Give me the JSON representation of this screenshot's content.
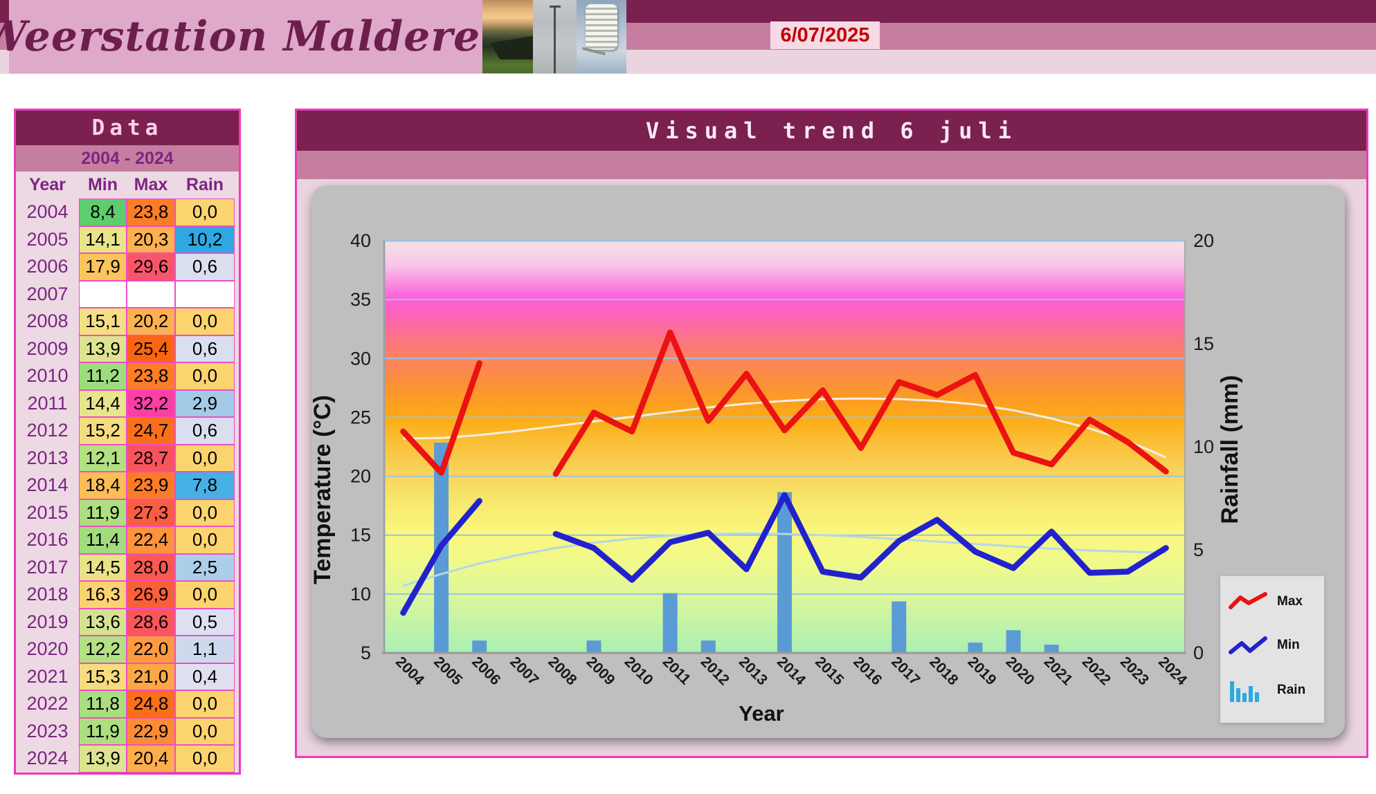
{
  "header": {
    "title": "Weerstation Malderen",
    "date": "6/07/2025",
    "photos": [
      "sunset-field-photo",
      "anemometer-mast-photo",
      "stevenson-screen-photo"
    ]
  },
  "table": {
    "title": "Data",
    "range": "2004 - 2024",
    "columns": [
      "Year",
      "Min",
      "Max",
      "Rain"
    ],
    "rows": [
      {
        "year": "2004",
        "min": "8,4",
        "min_bg": "#5dcd6e",
        "max": "23,8",
        "max_bg": "#fb7d27",
        "rain": "0,0",
        "rain_bg": "#fbd46f"
      },
      {
        "year": "2005",
        "min": "14,1",
        "min_bg": "#e9e489",
        "max": "20,3",
        "max_bg": "#fcb04f",
        "rain": "10,2",
        "rain_bg": "#2da8e2"
      },
      {
        "year": "2006",
        "min": "17,9",
        "min_bg": "#fcc45c",
        "max": "29,6",
        "max_bg": "#f9556a",
        "rain": "0,6",
        "rain_bg": "#dbdeef"
      },
      {
        "year": "2007",
        "min": "",
        "min_bg": "#ffffff",
        "max": "",
        "max_bg": "#ffffff",
        "rain": "",
        "rain_bg": "#ffffff"
      },
      {
        "year": "2008",
        "min": "15,1",
        "min_bg": "#f5de83",
        "max": "20,2",
        "max_bg": "#fcb150",
        "rain": "0,0",
        "rain_bg": "#fbd46f"
      },
      {
        "year": "2009",
        "min": "13,9",
        "min_bg": "#dde390",
        "max": "25,4",
        "max_bg": "#fa6610",
        "rain": "0,6",
        "rain_bg": "#dbdeef"
      },
      {
        "year": "2010",
        "min": "11,2",
        "min_bg": "#9edc7d",
        "max": "23,8",
        "max_bg": "#fb7d27",
        "rain": "0,0",
        "rain_bg": "#fbd46f"
      },
      {
        "year": "2011",
        "min": "14,4",
        "min_bg": "#e7e48b",
        "max": "32,2",
        "max_bg": "#fb3fa5",
        "rain": "2,9",
        "rain_bg": "#a3cbe8"
      },
      {
        "year": "2012",
        "min": "15,2",
        "min_bg": "#f5dc81",
        "max": "24,7",
        "max_bg": "#fb6f1b",
        "rain": "0,6",
        "rain_bg": "#dbdeef"
      },
      {
        "year": "2013",
        "min": "12,1",
        "min_bg": "#b3e083",
        "max": "28,7",
        "max_bg": "#f9545e",
        "rain": "0,0",
        "rain_bg": "#fbd46f"
      },
      {
        "year": "2014",
        "min": "18,4",
        "min_bg": "#fcbd55",
        "max": "23,9",
        "max_bg": "#fb7b26",
        "rain": "7,8",
        "rain_bg": "#47b0e5"
      },
      {
        "year": "2015",
        "min": "11,9",
        "min_bg": "#aede80",
        "max": "27,3",
        "max_bg": "#fa5d43",
        "rain": "0,0",
        "rain_bg": "#fbd46f"
      },
      {
        "year": "2016",
        "min": "11,4",
        "min_bg": "#a2dc7e",
        "max": "22,4",
        "max_bg": "#fc943d",
        "rain": "0,0",
        "rain_bg": "#fbd46f"
      },
      {
        "year": "2017",
        "min": "14,5",
        "min_bg": "#e9e287",
        "max": "28,0",
        "max_bg": "#f95951",
        "rain": "2,5",
        "rain_bg": "#accfe9"
      },
      {
        "year": "2018",
        "min": "16,3",
        "min_bg": "#fbd271",
        "max": "26,9",
        "max_bg": "#fa6038",
        "rain": "0,0",
        "rain_bg": "#fbd46f"
      },
      {
        "year": "2019",
        "min": "13,6",
        "min_bg": "#d6e292",
        "max": "28,6",
        "max_bg": "#f9565c",
        "rain": "0,5",
        "rain_bg": "#dedff0"
      },
      {
        "year": "2020",
        "min": "12,2",
        "min_bg": "#b5e083",
        "max": "22,0",
        "max_bg": "#fc9941",
        "rain": "1,1",
        "rain_bg": "#cfd9ee"
      },
      {
        "year": "2021",
        "min": "15,3",
        "min_bg": "#f6db7f",
        "max": "21,0",
        "max_bg": "#fca748",
        "rain": "0,4",
        "rain_bg": "#e0dff1"
      },
      {
        "year": "2022",
        "min": "11,8",
        "min_bg": "#abde81",
        "max": "24,8",
        "max_bg": "#fb6e1a",
        "rain": "0,0",
        "rain_bg": "#fbd46f"
      },
      {
        "year": "2023",
        "min": "11,9",
        "min_bg": "#aede80",
        "max": "22,9",
        "max_bg": "#fc8b37",
        "rain": "0,0",
        "rain_bg": "#fbd46f"
      },
      {
        "year": "2024",
        "min": "13,9",
        "min_bg": "#dde390",
        "max": "20,4",
        "max_bg": "#fcae4d",
        "rain": "0,0",
        "rain_bg": "#fbd46f"
      }
    ]
  },
  "chart": {
    "title": "Visual trend 6 juli",
    "x_label": "Year",
    "y_left_label": "Temperature (°C)",
    "y_right_label": "Rainfall (mm)",
    "y_left_ticks": [
      40,
      35,
      30,
      25,
      20,
      15,
      10,
      5
    ],
    "y_right_ticks": [
      20,
      15,
      10,
      5,
      0
    ],
    "colors": {
      "max_line": "#ea1212",
      "min_line": "#2222cc",
      "bar": "#5b9bd5",
      "trend_max": "#f5eee2",
      "trend_min": "#b4d7ea",
      "gridline": "#9cc2e5",
      "legend_rain_icon": "#29abe2"
    },
    "bg_gradient": [
      {
        "o": 0,
        "c": "#f4e3e6"
      },
      {
        "o": 6,
        "c": "#f9c4ea"
      },
      {
        "o": 14,
        "c": "#fb5ed9"
      },
      {
        "o": 21,
        "c": "#fc6b9d"
      },
      {
        "o": 28,
        "c": "#fc8162"
      },
      {
        "o": 36,
        "c": "#fb9430"
      },
      {
        "o": 43,
        "c": "#fcab13"
      },
      {
        "o": 50,
        "c": "#fac33e"
      },
      {
        "o": 57,
        "c": "#f8d55e"
      },
      {
        "o": 64,
        "c": "#f7e96e"
      },
      {
        "o": 71,
        "c": "#faf87e"
      },
      {
        "o": 79,
        "c": "#eef98c"
      },
      {
        "o": 86,
        "c": "#def69b"
      },
      {
        "o": 93,
        "c": "#c2f3a7"
      },
      {
        "o": 100,
        "c": "#abf0b3"
      }
    ],
    "legend": [
      {
        "label": "Max",
        "icon": "max-line-icon"
      },
      {
        "label": "Min",
        "icon": "min-line-icon"
      },
      {
        "label": "Rain",
        "icon": "rain-bars-icon"
      }
    ]
  },
  "chart_data": {
    "type": "line+bar",
    "title": "Visual trend 6 juli",
    "xlabel": "Year",
    "ylabel_left": "Temperature (°C)",
    "ylabel_right": "Rainfall (mm)",
    "ylim_left": [
      5,
      40
    ],
    "ylim_right": [
      0,
      20
    ],
    "grid": true,
    "legend_position": "lower right",
    "x": [
      "2004",
      "2005",
      "2006",
      "2007",
      "2008",
      "2009",
      "2010",
      "2011",
      "2012",
      "2013",
      "2014",
      "2015",
      "2016",
      "2017",
      "2018",
      "2019",
      "2020",
      "2021",
      "2022",
      "2023",
      "2024"
    ],
    "series": [
      {
        "name": "Max",
        "type": "line",
        "axis": "left",
        "values": [
          23.8,
          20.3,
          29.6,
          null,
          20.2,
          25.4,
          23.8,
          32.2,
          24.7,
          28.7,
          23.9,
          27.3,
          22.4,
          28.0,
          26.9,
          28.6,
          22.0,
          21.0,
          24.8,
          22.9,
          20.4
        ]
      },
      {
        "name": "Min",
        "type": "line",
        "axis": "left",
        "values": [
          8.4,
          14.1,
          17.9,
          null,
          15.1,
          13.9,
          11.2,
          14.4,
          15.2,
          12.1,
          18.4,
          11.9,
          11.4,
          14.5,
          16.3,
          13.6,
          12.2,
          15.3,
          11.8,
          11.9,
          13.9
        ]
      },
      {
        "name": "Rain",
        "type": "bar",
        "axis": "right",
        "values": [
          0.0,
          10.2,
          0.6,
          null,
          0.0,
          0.6,
          0.0,
          2.9,
          0.6,
          0.0,
          7.8,
          0.0,
          0.0,
          2.5,
          0.0,
          0.5,
          1.1,
          0.4,
          0.0,
          0.0,
          0.0
        ]
      },
      {
        "name": "Max trend",
        "type": "trendline",
        "axis": "left",
        "values": [
          23.2,
          23.25,
          23.5,
          23.85,
          24.25,
          24.65,
          25.05,
          25.45,
          25.85,
          26.15,
          26.4,
          26.55,
          26.6,
          26.55,
          26.4,
          26.1,
          25.6,
          24.9,
          24.05,
          23.0,
          21.6
        ]
      },
      {
        "name": "Min trend",
        "type": "trendline",
        "axis": "left",
        "values": [
          10.7,
          11.7,
          12.6,
          13.3,
          13.9,
          14.35,
          14.7,
          14.95,
          15.1,
          15.15,
          15.1,
          15.0,
          14.85,
          14.65,
          14.45,
          14.25,
          14.05,
          13.85,
          13.7,
          13.6,
          13.5
        ]
      }
    ]
  }
}
